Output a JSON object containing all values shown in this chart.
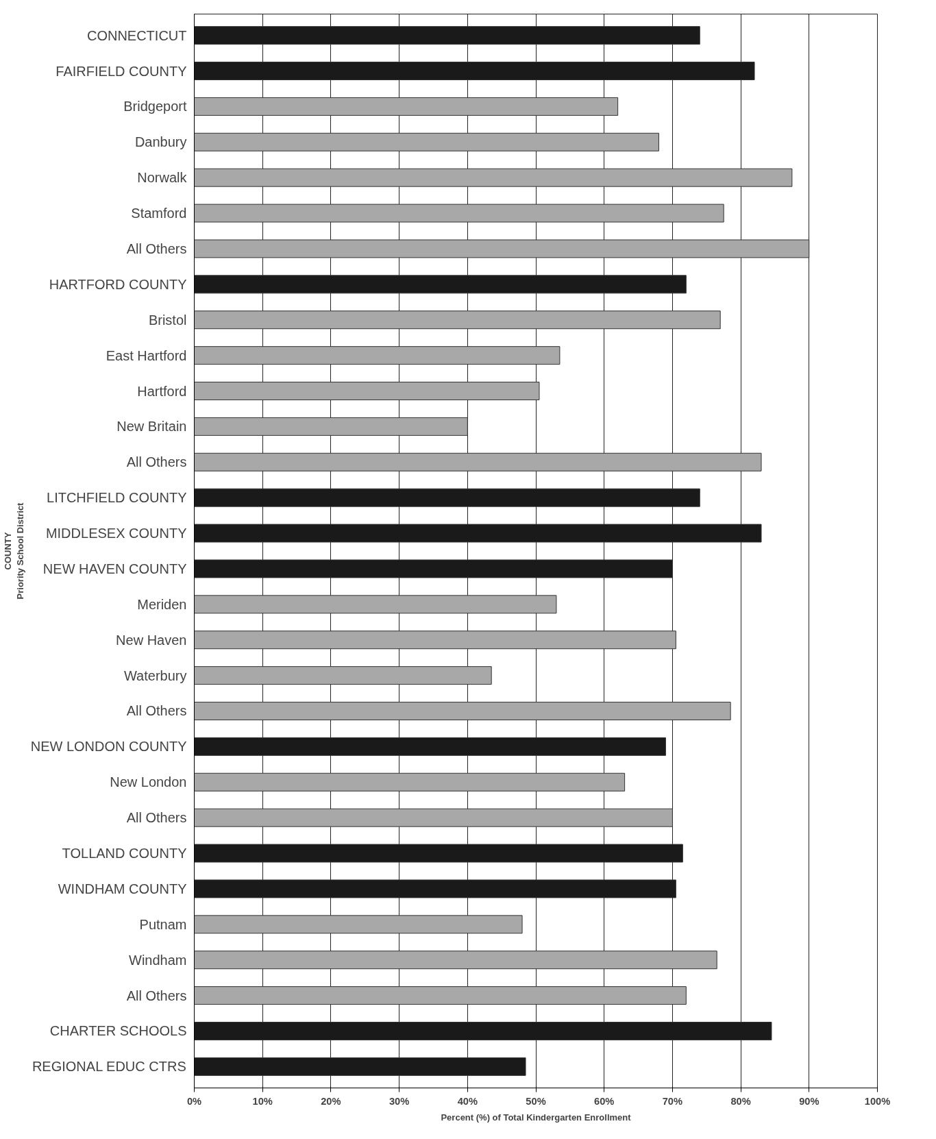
{
  "chart_data": {
    "type": "bar",
    "orientation": "horizontal",
    "xlabel": "Percent (%) of Total Kindergarten Enrollment",
    "ylabel": "COUNTY\nPriority School District",
    "categories": [
      "CONNECTICUT",
      "FAIRFIELD COUNTY",
      "Bridgeport",
      "Danbury",
      "Norwalk",
      "Stamford",
      "All Others",
      "HARTFORD COUNTY",
      "Bristol",
      "East Hartford",
      "Hartford",
      "New Britain",
      "All Others",
      "LITCHFIELD COUNTY",
      "MIDDLESEX COUNTY",
      "NEW HAVEN COUNTY",
      "Meriden",
      "New Haven",
      "Waterbury",
      "All Others",
      "NEW LONDON COUNTY",
      "New London",
      "All Others",
      "TOLLAND COUNTY",
      "WINDHAM COUNTY",
      "Putnam",
      "Windham",
      "All Others",
      "CHARTER SCHOOLS",
      "REGIONAL EDUC CTRS"
    ],
    "values": [
      74,
      82,
      62,
      68,
      87.5,
      77.5,
      90,
      72,
      77,
      53.5,
      50.5,
      40,
      83,
      74,
      83,
      70,
      53,
      70.5,
      43.5,
      78.5,
      69,
      63,
      70,
      71.5,
      70.5,
      48,
      76.5,
      72,
      84.5,
      48.5
    ],
    "colors": [
      "#1a1a1a",
      "#1a1a1a",
      "#a8a8a8",
      "#a8a8a8",
      "#a8a8a8",
      "#a8a8a8",
      "#a8a8a8",
      "#1a1a1a",
      "#a8a8a8",
      "#a8a8a8",
      "#a8a8a8",
      "#a8a8a8",
      "#a8a8a8",
      "#1a1a1a",
      "#1a1a1a",
      "#1a1a1a",
      "#a8a8a8",
      "#a8a8a8",
      "#a8a8a8",
      "#a8a8a8",
      "#1a1a1a",
      "#a8a8a8",
      "#a8a8a8",
      "#1a1a1a",
      "#1a1a1a",
      "#a8a8a8",
      "#a8a8a8",
      "#a8a8a8",
      "#1a1a1a",
      "#1a1a1a"
    ],
    "xlim": [
      0,
      100
    ],
    "xticks": [
      {
        "value": 0,
        "label": "0%"
      },
      {
        "value": 10,
        "label": "10%"
      },
      {
        "value": 20,
        "label": "20%"
      },
      {
        "value": 30,
        "label": "30%"
      },
      {
        "value": 40,
        "label": "40%"
      },
      {
        "value": 50,
        "label": "50%"
      },
      {
        "value": 60,
        "label": "60%"
      },
      {
        "value": 70,
        "label": "70%"
      },
      {
        "value": 80,
        "label": "80%"
      },
      {
        "value": 90,
        "label": "90%"
      },
      {
        "value": 100,
        "label": "100%"
      }
    ],
    "grid": "x"
  }
}
